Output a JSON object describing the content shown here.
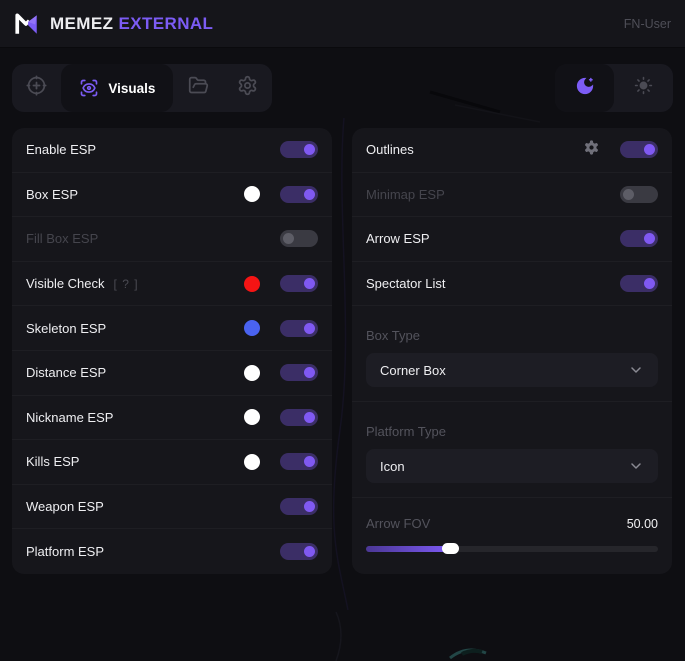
{
  "colors": {
    "accent": "#7c5cf5",
    "toggle_on_track": "#3b2e66",
    "toggle_on_knob": "#8059f2",
    "swatch_white": "#ffffff",
    "swatch_red": "#f51414",
    "swatch_blue": "#4a63f0"
  },
  "icons": {
    "toolbar": [
      "crosshair-icon",
      "eye-scan-icon",
      "folder-icon",
      "gear-icon"
    ],
    "theme": [
      "moon-icon",
      "sun-icon"
    ],
    "outlines": "gear-icon",
    "selects": "chevron-down-icon"
  },
  "header": {
    "brand": "MEMEZ ",
    "brand_accent": "EXTERNAL",
    "username": "FN-User"
  },
  "toolbar": {
    "active_tab_label": "Visuals"
  },
  "panels": {
    "left": {
      "rows": [
        {
          "label": "Enable ESP",
          "toggle": "on"
        },
        {
          "label": "Box ESP",
          "swatch": "#ffffff",
          "toggle": "on"
        },
        {
          "label": "Fill Box ESP",
          "toggle": "off",
          "disabled": true
        },
        {
          "label": "Visible Check",
          "help": "[ ? ]",
          "swatch": "#f51414",
          "toggle": "on"
        },
        {
          "label": "Skeleton ESP",
          "swatch": "#4a63f0",
          "toggle": "on"
        },
        {
          "label": "Distance ESP",
          "swatch": "#ffffff",
          "toggle": "on"
        },
        {
          "label": "Nickname ESP",
          "swatch": "#ffffff",
          "toggle": "on"
        },
        {
          "label": "Kills ESP",
          "swatch": "#ffffff",
          "toggle": "on"
        },
        {
          "label": "Weapon ESP",
          "toggle": "on"
        },
        {
          "label": "Platform ESP",
          "toggle": "on"
        }
      ]
    },
    "right": {
      "rows": [
        {
          "label": "Outlines",
          "has_settings": true,
          "toggle": "on"
        },
        {
          "label": "Minimap ESP",
          "toggle": "off",
          "disabled": true
        },
        {
          "label": "Arrow ESP",
          "toggle": "on"
        },
        {
          "label": "Spectator List",
          "toggle": "on"
        }
      ],
      "box_type": {
        "label": "Box Type",
        "value": "Corner Box"
      },
      "platform_type": {
        "label": "Platform Type",
        "value": "Icon"
      },
      "slider": {
        "label": "Arrow FOV",
        "value": "50.00",
        "fill_percent": "29%"
      }
    }
  }
}
